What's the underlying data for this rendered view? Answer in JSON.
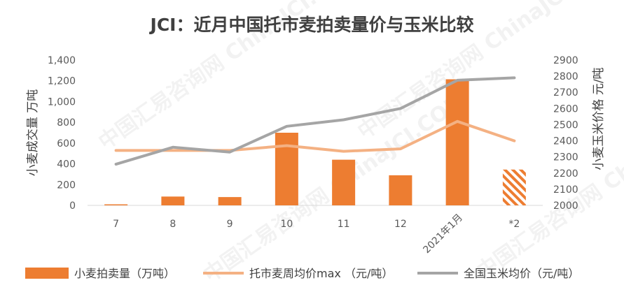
{
  "chart_data": {
    "type": "bar+line",
    "title": "JCI：近月中国托市麦拍卖量价与玉米比较",
    "categories": [
      "7",
      "8",
      "9",
      "10",
      "11",
      "12",
      "2021年1月",
      "*2"
    ],
    "left_axis": {
      "label": "小麦成交量  万吨",
      "ticks": [
        "0",
        "200",
        "400",
        "600",
        "800",
        "1,000",
        "1,200",
        "1,400"
      ],
      "ylim": [
        0,
        1400
      ]
    },
    "right_axis": {
      "label": "小麦玉米价格 元/吨",
      "ticks": [
        "2000",
        "2100",
        "2200",
        "2300",
        "2400",
        "2500",
        "2600",
        "2700",
        "2800",
        "2900"
      ],
      "ylim": [
        2000,
        2900
      ]
    },
    "series": [
      {
        "name": "小麦拍卖量（万吨）",
        "kind": "bar",
        "axis": "left",
        "color": "#ED7D31",
        "values": [
          10,
          85,
          80,
          700,
          440,
          290,
          1215,
          345
        ],
        "hatched_index": 7
      },
      {
        "name": "托市麦周均价max （元/吨）",
        "kind": "line",
        "axis": "right",
        "color": "#F4B183",
        "values": [
          2340,
          2340,
          2340,
          2370,
          2335,
          2350,
          2520,
          2400
        ]
      },
      {
        "name": "全国玉米均价（元/吨）",
        "kind": "line",
        "axis": "right",
        "color": "#A5A5A5",
        "values": [
          2255,
          2360,
          2330,
          2490,
          2530,
          2600,
          2775,
          2790
        ]
      }
    ],
    "legend_position": "bottom",
    "grid": false,
    "watermark": "中国汇易咨询网 ChinaJCI.COM"
  }
}
